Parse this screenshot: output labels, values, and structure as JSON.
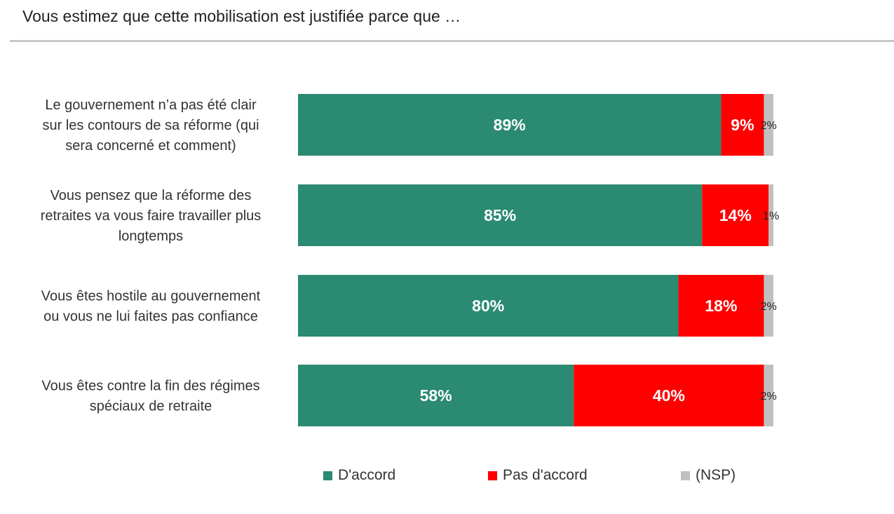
{
  "title": "Vous estimez que cette mobilisation est justifiée parce que …",
  "colors": {
    "agree": "#2a8a72",
    "disagree": "#ff0000",
    "nsp": "#c0c0c0"
  },
  "chart_data": {
    "type": "bar",
    "orientation": "horizontal",
    "stacked": true,
    "unit": "%",
    "xlim": [
      0,
      100
    ],
    "categories": [
      [
        "Le gouvernement n’a pas été clair",
        "sur les contours de sa réforme (qui",
        "sera concerné et comment)"
      ],
      [
        "Vous pensez que la réforme des",
        "retraites va vous faire travailler plus",
        "longtemps"
      ],
      [
        "Vous êtes hostile au gouvernement",
        "ou vous ne lui faites pas confiance"
      ],
      [
        "Vous êtes contre la fin des régimes",
        "spéciaux de retraite"
      ]
    ],
    "series": [
      {
        "name": "D'accord",
        "values": [
          89,
          85,
          80,
          58
        ],
        "labels": [
          "89%",
          "85%",
          "80%",
          "58%"
        ]
      },
      {
        "name": "Pas d'accord",
        "values": [
          9,
          14,
          18,
          40
        ],
        "labels": [
          "9%",
          "14%",
          "18%",
          "40%"
        ]
      },
      {
        "name": "(NSP)",
        "values": [
          2,
          1,
          2,
          2
        ],
        "labels": [
          "2%",
          "1%",
          "2%",
          "2%"
        ]
      }
    ],
    "legend": {
      "position": "bottom",
      "entries": [
        "D'accord",
        "Pas d'accord",
        "(NSP)"
      ]
    },
    "grid": false
  }
}
